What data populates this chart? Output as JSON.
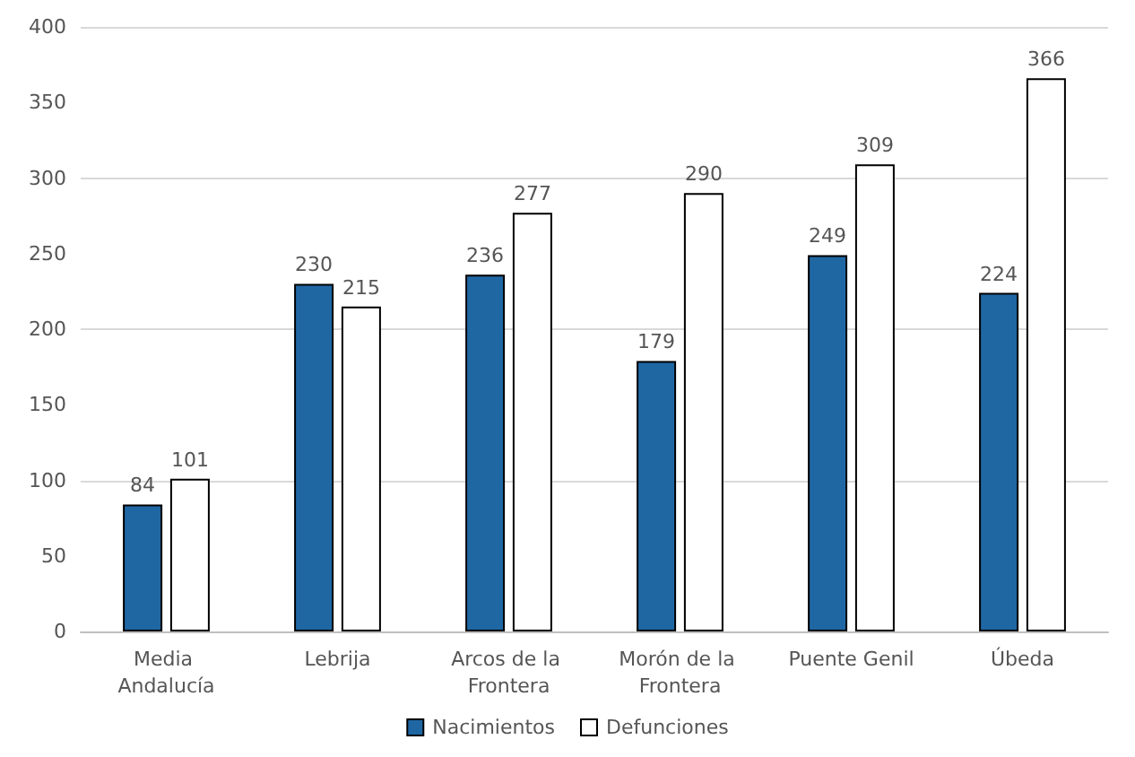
{
  "chart_data": {
    "type": "bar",
    "categories": [
      "Media Andalucía",
      "Lebrija",
      "Arcos de la Frontera",
      "Morón de la Frontera",
      "Puente Genil",
      "Úbeda"
    ],
    "series": [
      {
        "name": "Nacimientos",
        "color": "#1f67a3",
        "values": [
          84,
          230,
          236,
          179,
          249,
          224
        ]
      },
      {
        "name": "Defunciones",
        "color": "#ffffff",
        "values": [
          101,
          215,
          277,
          290,
          309,
          366
        ]
      }
    ],
    "ylim": [
      0,
      400
    ],
    "yticks": [
      0,
      50,
      100,
      150,
      200,
      250,
      300,
      350,
      400
    ],
    "grid": "y",
    "legend": "bottom",
    "data_labels": true
  }
}
